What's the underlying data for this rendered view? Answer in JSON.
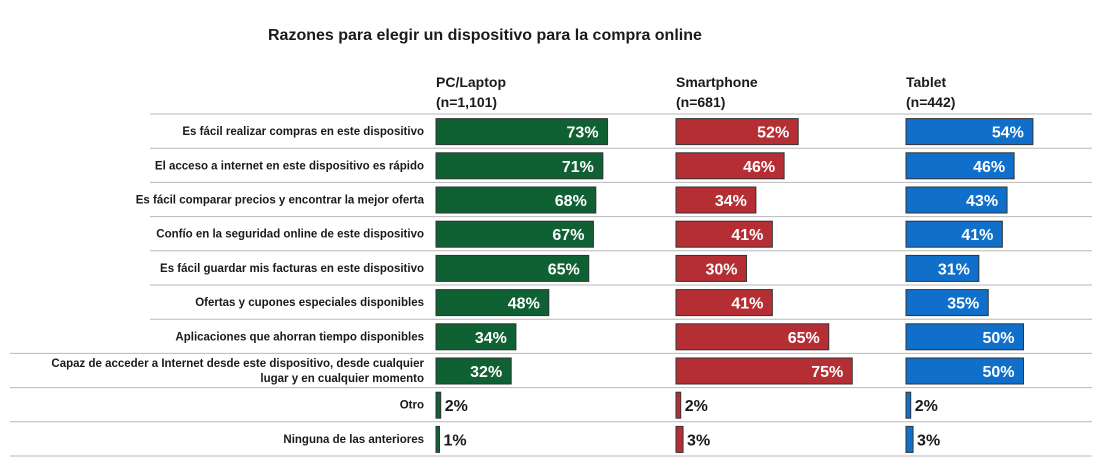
{
  "chart_data": {
    "type": "bar",
    "title": "Razones para elegir un dispositivo para la compra online",
    "categories": [
      [
        "Es fácil realizar compras en este dispositivo"
      ],
      [
        "El acceso a internet en este dispositivo es rápido"
      ],
      [
        "Es fácil comparar precios y encontrar la mejor oferta"
      ],
      [
        "Confío en la seguridad online de este dispositivo"
      ],
      [
        "Es fácil guardar mis facturas en este dispositivo"
      ],
      [
        "Ofertas y cupones especiales disponibles"
      ],
      [
        "Aplicaciones que ahorran tiempo disponibles"
      ],
      [
        "Capaz de acceder a Internet desde este dispositivo, desde cualquier",
        "lugar y en cualquier momento"
      ],
      [
        "Otro"
      ],
      [
        "Ninguna de las anteriores"
      ]
    ],
    "series": [
      {
        "name": "PC/Laptop",
        "n_label": "(n=1,101)",
        "color": "#0f6133",
        "values": [
          73,
          71,
          68,
          67,
          65,
          48,
          34,
          32,
          2,
          1
        ],
        "labels": [
          "73%",
          "71%",
          "68%",
          "67%",
          "65%",
          "48%",
          "34%",
          "32%",
          "2%",
          "1%"
        ]
      },
      {
        "name": "Smartphone",
        "n_label": "(n=681)",
        "color": "#b52e33",
        "values": [
          52,
          46,
          34,
          41,
          30,
          41,
          65,
          75,
          2,
          3
        ],
        "labels": [
          "52%",
          "46%",
          "34%",
          "41%",
          "30%",
          "41%",
          "65%",
          "75%",
          "2%",
          "3%"
        ]
      },
      {
        "name": "Tablet",
        "n_label": "(n=442)",
        "color": "#0f6fca",
        "values": [
          54,
          46,
          43,
          41,
          31,
          35,
          50,
          50,
          2,
          3
        ],
        "labels": [
          "54%",
          "46%",
          "43%",
          "41%",
          "31%",
          "35%",
          "50%",
          "50%",
          "2%",
          "3%"
        ]
      }
    ],
    "xlim": [
      0,
      100
    ],
    "grid": false,
    "legend": "column headers"
  }
}
